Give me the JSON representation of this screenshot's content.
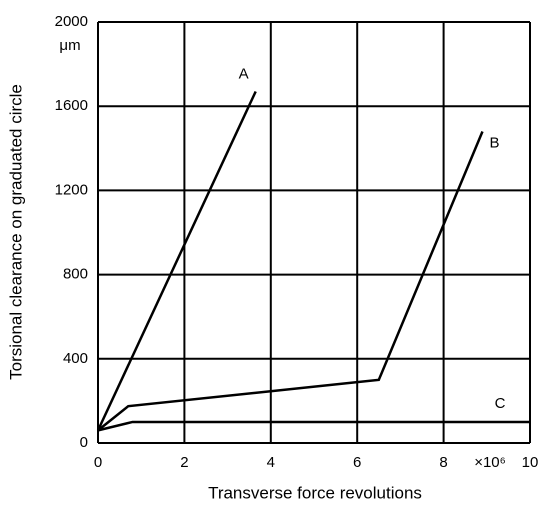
{
  "chart_data": {
    "type": "line",
    "x_label": "Transverse force revolutions",
    "y_label": "Torsional clearance on graduated circle",
    "y_unit": "μm",
    "x_unit": "×10⁶",
    "xlim": [
      0,
      10
    ],
    "xticks": [
      0,
      2,
      4,
      6,
      8,
      10
    ],
    "ylim": [
      0,
      2000
    ],
    "yticks": [
      0,
      400,
      800,
      1200,
      1600,
      2000
    ],
    "grid": true,
    "series": [
      {
        "name": "A",
        "color": "#000000",
        "x": [
          0,
          3.65
        ],
        "values": [
          60,
          1670
        ]
      },
      {
        "name": "B",
        "color": "#000000",
        "x": [
          0,
          0.7,
          6.5,
          8.9
        ],
        "values": [
          60,
          175,
          300,
          1480
        ]
      },
      {
        "name": "C",
        "color": "#000000",
        "x": [
          0,
          0.8,
          10
        ],
        "values": [
          60,
          100,
          100
        ]
      }
    ]
  }
}
